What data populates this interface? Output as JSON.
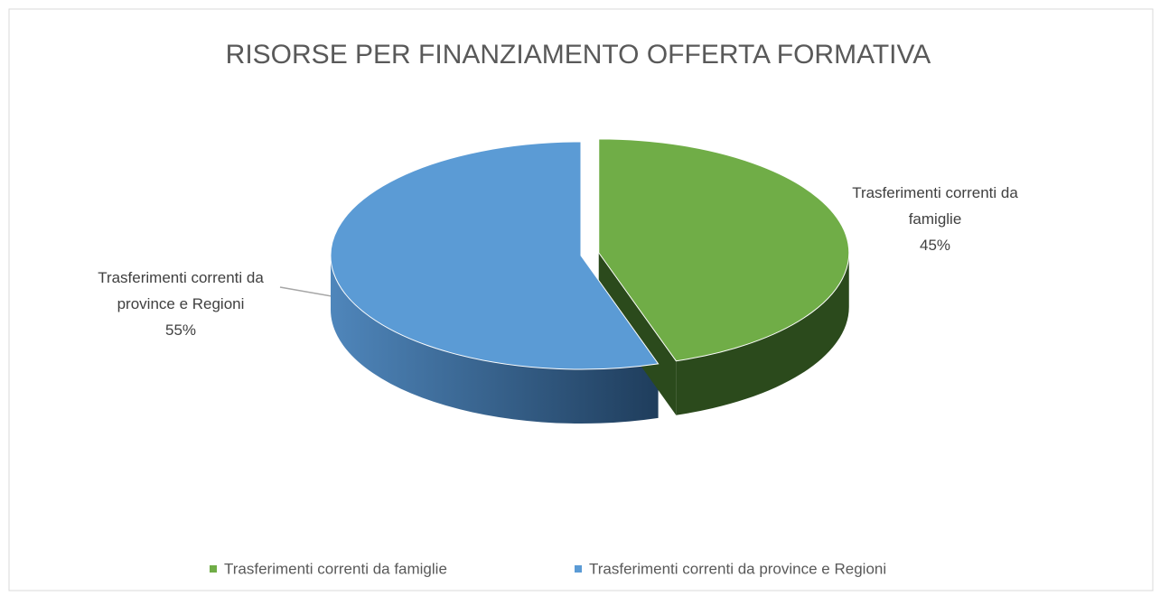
{
  "chart_data": {
    "type": "pie3d",
    "title": "RISORSE PER FINANZIAMENTO OFFERTA FORMATIVA",
    "categories": [
      "Trasferimenti correnti da famiglie",
      "Trasferimenti correnti da province e Regioni"
    ],
    "values": [
      45,
      55
    ],
    "value_labels": [
      "45%",
      "55%"
    ],
    "colors": [
      "#70ad47",
      "#5b9bd5"
    ],
    "legend": "bottom"
  }
}
